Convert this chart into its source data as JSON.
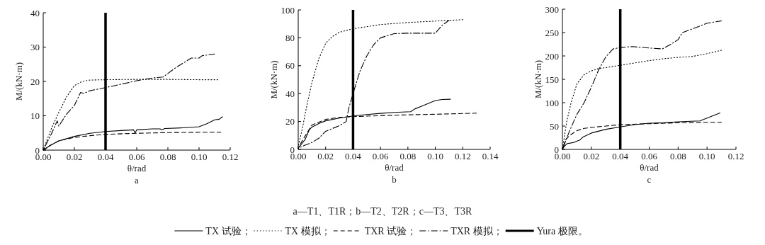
{
  "chart_data": [
    {
      "type": "line",
      "xlabel": "θ/rad",
      "ylabel": "M/(kN·m)",
      "annotations": [
        "a",
        "a—T1、T1R；b—T2、T2R；c—T3、T3R"
      ],
      "legend": "bottom",
      "xlim": [
        0,
        0.12
      ],
      "ylim": [
        0,
        40
      ],
      "xticks": [
        {
          "value": 0,
          "label": "0.00"
        },
        {
          "value": 0.02,
          "label": "0.02"
        },
        {
          "value": 0.04,
          "label": "0.04"
        },
        {
          "value": 0.06,
          "label": "0.06"
        },
        {
          "value": 0.08,
          "label": "0.08"
        },
        {
          "value": 0.1,
          "label": "0.10"
        },
        {
          "value": 0.12,
          "label": "0.12"
        }
      ],
      "yticks": [
        0,
        10,
        20,
        30,
        40
      ],
      "ref_lines": [
        {
          "axis": "x",
          "value": 0.04,
          "label": "Yura 极限。",
          "color": "#000000"
        }
      ],
      "series": [
        {
          "name": "TX 试验；",
          "color": "#000000",
          "line_style": "solid",
          "x": [
            0,
            0.005,
            0.01,
            0.02,
            0.03,
            0.04,
            0.05,
            0.058,
            0.059,
            0.06,
            0.07,
            0.075,
            0.076,
            0.078,
            0.09,
            0.1,
            0.105,
            0.11,
            0.113,
            0.115
          ],
          "values": [
            0,
            1.5,
            2.7,
            4,
            4.9,
            5.4,
            5.7,
            5.9,
            5,
            5.9,
            6.2,
            6.2,
            5.9,
            6.3,
            6.5,
            6.8,
            7.7,
            8.8,
            9,
            9.7
          ]
        },
        {
          "name": "TX 模拟；",
          "color": "#000000",
          "line_style": "dotted",
          "x": [
            0,
            0.005,
            0.01,
            0.015,
            0.02,
            0.025,
            0.03,
            0.04,
            0.06,
            0.08,
            0.1,
            0.112
          ],
          "values": [
            0,
            6,
            11,
            15.5,
            18.8,
            20,
            20.4,
            20.5,
            20.6,
            20.6,
            20.5,
            20.5
          ]
        },
        {
          "name": "TXR 试验；",
          "color": "#000000",
          "line_style": "dashed",
          "x": [
            0,
            0.005,
            0.01,
            0.02,
            0.03,
            0.04,
            0.06,
            0.08,
            0.1,
            0.114
          ],
          "values": [
            0,
            1.5,
            2.7,
            3.7,
            4.2,
            4.6,
            4.9,
            5.1,
            5.2,
            5.2
          ]
        },
        {
          "name": "TXR 模拟；",
          "color": "#000000",
          "line_style": "dashdot",
          "x": [
            0,
            0.005,
            0.009,
            0.01,
            0.015,
            0.02,
            0.024,
            0.026,
            0.03,
            0.04,
            0.05,
            0.06,
            0.07,
            0.077,
            0.085,
            0.095,
            0.1,
            0.102,
            0.11
          ],
          "values": [
            0,
            4.5,
            8.5,
            7,
            10.5,
            13,
            16.8,
            16.5,
            17.3,
            18.2,
            19.2,
            20.2,
            21,
            21.3,
            24,
            26.8,
            26.8,
            27.5,
            28
          ]
        }
      ]
    },
    {
      "type": "line",
      "xlabel": "θ/rad",
      "ylabel": "M/(kN·m)",
      "annotations": [
        "b"
      ],
      "xlim": [
        0,
        0.14
      ],
      "ylim": [
        0,
        100
      ],
      "xticks": [
        {
          "value": 0,
          "label": "0.00"
        },
        {
          "value": 0.02,
          "label": "0.02"
        },
        {
          "value": 0.04,
          "label": "0.04"
        },
        {
          "value": 0.06,
          "label": "0.06"
        },
        {
          "value": 0.08,
          "label": "0.08"
        },
        {
          "value": 0.1,
          "label": "0.10"
        },
        {
          "value": 0.12,
          "label": "0.12"
        },
        {
          "value": 0.14,
          "label": "0.14"
        }
      ],
      "yticks": [
        0,
        20,
        40,
        60,
        80,
        100
      ],
      "ref_lines": [
        {
          "axis": "x",
          "value": 0.04,
          "color": "#000000"
        }
      ],
      "series": [
        {
          "color": "#000000",
          "line_style": "solid",
          "x": [
            0,
            0.005,
            0.008,
            0.01,
            0.015,
            0.02,
            0.03,
            0.04,
            0.05,
            0.06,
            0.07,
            0.082,
            0.085,
            0.09,
            0.1,
            0.105,
            0.111
          ],
          "values": [
            1,
            7,
            14,
            16,
            18.5,
            20.5,
            22.5,
            24,
            25,
            25.8,
            26.5,
            27,
            29,
            31,
            35,
            35.8,
            36
          ]
        },
        {
          "color": "#000000",
          "line_style": "dotted",
          "x": [
            0,
            0.003,
            0.006,
            0.01,
            0.015,
            0.02,
            0.025,
            0.03,
            0.04,
            0.05,
            0.06,
            0.08,
            0.1,
            0.12
          ],
          "values": [
            2,
            15,
            30,
            48,
            65,
            76,
            81,
            84,
            86.5,
            88,
            89.5,
            91,
            92,
            93
          ]
        },
        {
          "color": "#000000",
          "line_style": "dashed",
          "x": [
            0,
            0.004,
            0.01,
            0.02,
            0.03,
            0.04,
            0.06,
            0.08,
            0.1,
            0.13
          ],
          "values": [
            1,
            8,
            17.5,
            21.5,
            23,
            23.5,
            24.2,
            24.8,
            25.2,
            26
          ]
        },
        {
          "color": "#000000",
          "line_style": "dashdot",
          "x": [
            0,
            0.005,
            0.01,
            0.015,
            0.02,
            0.025,
            0.03,
            0.035,
            0.037,
            0.04,
            0.045,
            0.05,
            0.055,
            0.06,
            0.07,
            0.08,
            0.09,
            0.1,
            0.105,
            0.11
          ],
          "values": [
            1,
            3,
            5,
            8,
            13,
            15,
            17,
            20,
            30,
            40,
            56,
            67,
            75,
            80,
            83,
            83.3,
            83.3,
            83.3,
            89,
            92.5
          ]
        }
      ]
    },
    {
      "type": "line",
      "xlabel": "θ/rad",
      "ylabel": "M/(kN·m)",
      "annotations": [
        "c"
      ],
      "xlim": [
        0,
        0.12
      ],
      "ylim": [
        0,
        300
      ],
      "xticks": [
        {
          "value": 0,
          "label": "0.00"
        },
        {
          "value": 0.02,
          "label": "0.02"
        },
        {
          "value": 0.04,
          "label": "0.04"
        },
        {
          "value": 0.06,
          "label": "0.06"
        },
        {
          "value": 0.08,
          "label": "0.08"
        },
        {
          "value": 0.1,
          "label": "0.10"
        },
        {
          "value": 0.12,
          "label": "0.12"
        }
      ],
      "yticks": [
        0,
        50,
        100,
        150,
        200,
        250,
        300
      ],
      "ref_lines": [
        {
          "axis": "x",
          "value": 0.04,
          "color": "#000000"
        }
      ],
      "series": [
        {
          "color": "#000000",
          "line_style": "solid",
          "x": [
            0,
            0.001,
            0.003,
            0.008,
            0.012,
            0.014,
            0.02,
            0.03,
            0.04,
            0.05,
            0.06,
            0.07,
            0.08,
            0.095,
            0.1,
            0.109
          ],
          "values": [
            0,
            5,
            12,
            15,
            20,
            26,
            35,
            43,
            48,
            53,
            56,
            57,
            59,
            61,
            67,
            78
          ]
        },
        {
          "color": "#000000",
          "line_style": "dotted",
          "x": [
            0,
            0.003,
            0.006,
            0.01,
            0.015,
            0.02,
            0.025,
            0.03,
            0.04,
            0.05,
            0.06,
            0.07,
            0.08,
            0.09,
            0.1,
            0.11
          ],
          "values": [
            0,
            60,
            100,
            140,
            160,
            168,
            173,
            175,
            180,
            185,
            190,
            194,
            197,
            199,
            205,
            212
          ]
        },
        {
          "color": "#000000",
          "line_style": "dashed",
          "x": [
            0,
            0.002,
            0.005,
            0.01,
            0.015,
            0.02,
            0.03,
            0.04,
            0.06,
            0.08,
            0.1,
            0.11
          ],
          "values": [
            0,
            20,
            30,
            40,
            45,
            47,
            50,
            53,
            55,
            57,
            58,
            58
          ]
        },
        {
          "color": "#000000",
          "line_style": "dashdot",
          "x": [
            0,
            0.005,
            0.01,
            0.015,
            0.02,
            0.025,
            0.03,
            0.035,
            0.04,
            0.048,
            0.06,
            0.069,
            0.075,
            0.08,
            0.083,
            0.09,
            0.1,
            0.11
          ],
          "values": [
            0,
            40,
            75,
            100,
            133,
            170,
            198,
            215,
            218,
            220,
            217,
            215,
            225,
            235,
            250,
            258,
            270,
            275
          ]
        }
      ]
    }
  ]
}
